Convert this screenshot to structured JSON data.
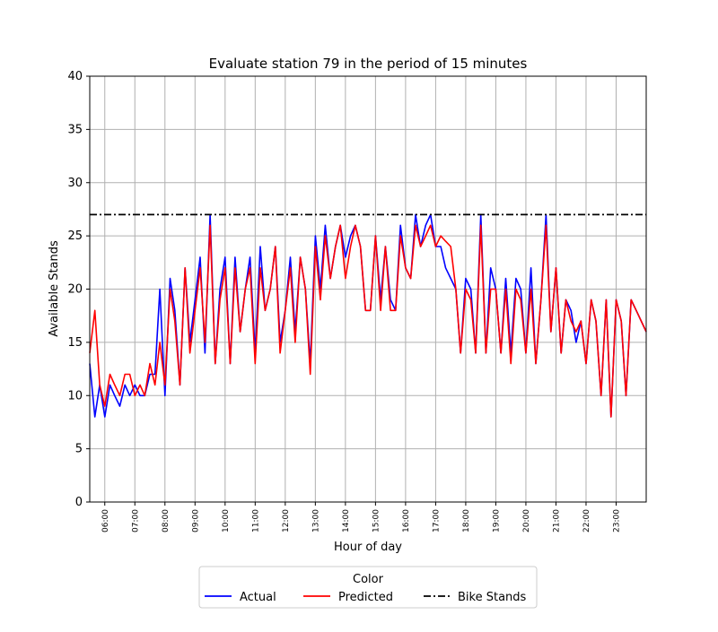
{
  "chart_data": {
    "type": "line",
    "title": "Evaluate station 79 in the period of 15 minutes",
    "xlabel": "Hour of day",
    "ylabel": "Available Stands",
    "ylim": [
      0,
      40
    ],
    "yticks": [
      0,
      5,
      10,
      15,
      20,
      25,
      30,
      35,
      40
    ],
    "xlim": [
      5.5,
      24.0
    ],
    "x_tick_labels": [
      "06:00",
      "07:00",
      "08:00",
      "09:00",
      "10:00",
      "11:00",
      "12:00",
      "13:00",
      "14:00",
      "15:00",
      "16:00",
      "17:00",
      "18:00",
      "19:00",
      "20:00",
      "21:00",
      "22:00",
      "23:00"
    ],
    "grid": true,
    "legend": {
      "title": "Color",
      "placement": "bottom-center",
      "entries": [
        "Actual",
        "Predicted",
        "Bike Stands"
      ]
    },
    "hline": {
      "name": "Bike Stands",
      "y": 27,
      "color": "#000000",
      "style": "dash-dot"
    },
    "series": [
      {
        "name": "Actual",
        "color": "#0000ff",
        "points": [
          [
            5.5,
            13
          ],
          [
            5.67,
            8
          ],
          [
            5.83,
            11
          ],
          [
            6.0,
            8
          ],
          [
            6.17,
            11
          ],
          [
            6.33,
            10
          ],
          [
            6.5,
            9
          ],
          [
            6.67,
            11
          ],
          [
            6.83,
            10
          ],
          [
            7.0,
            11
          ],
          [
            7.17,
            10
          ],
          [
            7.33,
            10
          ],
          [
            7.5,
            12
          ],
          [
            7.67,
            12
          ],
          [
            7.83,
            20
          ],
          [
            8.0,
            10
          ],
          [
            8.17,
            21
          ],
          [
            8.33,
            18
          ],
          [
            8.5,
            11
          ],
          [
            8.67,
            22
          ],
          [
            8.83,
            15
          ],
          [
            9.0,
            19
          ],
          [
            9.17,
            23
          ],
          [
            9.33,
            14
          ],
          [
            9.5,
            27
          ],
          [
            9.67,
            13
          ],
          [
            9.83,
            20
          ],
          [
            10.0,
            23
          ],
          [
            10.17,
            13
          ],
          [
            10.33,
            23
          ],
          [
            10.5,
            16
          ],
          [
            10.67,
            20
          ],
          [
            10.83,
            23
          ],
          [
            11.0,
            14
          ],
          [
            11.17,
            24
          ],
          [
            11.33,
            18
          ],
          [
            11.5,
            20
          ],
          [
            11.67,
            24
          ],
          [
            11.83,
            15
          ],
          [
            12.0,
            18
          ],
          [
            12.17,
            23
          ],
          [
            12.33,
            16
          ],
          [
            12.5,
            23
          ],
          [
            12.67,
            20
          ],
          [
            12.83,
            13
          ],
          [
            13.0,
            25
          ],
          [
            13.17,
            20
          ],
          [
            13.33,
            26
          ],
          [
            13.5,
            21
          ],
          [
            13.67,
            24
          ],
          [
            13.83,
            26
          ],
          [
            14.0,
            23
          ],
          [
            14.17,
            25
          ],
          [
            14.33,
            26
          ],
          [
            14.5,
            24
          ],
          [
            14.67,
            18
          ],
          [
            14.83,
            18
          ],
          [
            15.0,
            25
          ],
          [
            15.17,
            19
          ],
          [
            15.33,
            24
          ],
          [
            15.5,
            19
          ],
          [
            15.67,
            18
          ],
          [
            15.83,
            26
          ],
          [
            16.0,
            22
          ],
          [
            16.17,
            21
          ],
          [
            16.33,
            27
          ],
          [
            16.5,
            24
          ],
          [
            16.67,
            26
          ],
          [
            16.83,
            27
          ],
          [
            17.0,
            24
          ],
          [
            17.17,
            24
          ],
          [
            17.33,
            22
          ],
          [
            17.5,
            21
          ],
          [
            17.67,
            20
          ],
          [
            17.83,
            14
          ],
          [
            18.0,
            21
          ],
          [
            18.17,
            20
          ],
          [
            18.33,
            14
          ],
          [
            18.5,
            27
          ],
          [
            18.67,
            14
          ],
          [
            18.83,
            22
          ],
          [
            19.0,
            20
          ],
          [
            19.17,
            14
          ],
          [
            19.33,
            21
          ],
          [
            19.5,
            14
          ],
          [
            19.67,
            21
          ],
          [
            19.83,
            20
          ],
          [
            20.0,
            14
          ],
          [
            20.17,
            22
          ],
          [
            20.33,
            13
          ],
          [
            20.5,
            19
          ],
          [
            20.67,
            27
          ],
          [
            20.83,
            16
          ],
          [
            21.0,
            22
          ],
          [
            21.17,
            14
          ],
          [
            21.33,
            19
          ],
          [
            21.5,
            18
          ],
          [
            21.67,
            15
          ],
          [
            21.83,
            17
          ],
          [
            22.0,
            13
          ],
          [
            22.17,
            19
          ],
          [
            22.33,
            17
          ],
          [
            22.5,
            10
          ],
          [
            22.67,
            19
          ],
          [
            22.83,
            8
          ],
          [
            23.0,
            19
          ],
          [
            23.17,
            17
          ],
          [
            23.33,
            10
          ],
          [
            23.5,
            19
          ],
          [
            23.67,
            18
          ],
          [
            24.0,
            16
          ]
        ]
      },
      {
        "name": "Predicted",
        "color": "#ff0000",
        "points": [
          [
            5.5,
            14
          ],
          [
            5.67,
            18
          ],
          [
            5.83,
            11
          ],
          [
            6.0,
            9
          ],
          [
            6.17,
            12
          ],
          [
            6.33,
            11
          ],
          [
            6.5,
            10
          ],
          [
            6.67,
            12
          ],
          [
            6.83,
            12
          ],
          [
            7.0,
            10
          ],
          [
            7.17,
            11
          ],
          [
            7.33,
            10
          ],
          [
            7.5,
            13
          ],
          [
            7.67,
            11
          ],
          [
            7.83,
            15
          ],
          [
            8.0,
            11
          ],
          [
            8.17,
            20
          ],
          [
            8.33,
            17
          ],
          [
            8.5,
            11
          ],
          [
            8.67,
            22
          ],
          [
            8.83,
            14
          ],
          [
            9.0,
            18
          ],
          [
            9.17,
            22
          ],
          [
            9.33,
            15
          ],
          [
            9.5,
            26
          ],
          [
            9.67,
            13
          ],
          [
            9.83,
            19
          ],
          [
            10.0,
            22
          ],
          [
            10.17,
            13
          ],
          [
            10.33,
            22
          ],
          [
            10.5,
            16
          ],
          [
            10.67,
            20
          ],
          [
            10.83,
            22
          ],
          [
            11.0,
            13
          ],
          [
            11.17,
            22
          ],
          [
            11.33,
            18
          ],
          [
            11.5,
            20
          ],
          [
            11.67,
            24
          ],
          [
            11.83,
            14
          ],
          [
            12.0,
            18
          ],
          [
            12.17,
            22
          ],
          [
            12.33,
            15
          ],
          [
            12.5,
            23
          ],
          [
            12.67,
            20
          ],
          [
            12.83,
            12
          ],
          [
            13.0,
            24
          ],
          [
            13.17,
            19
          ],
          [
            13.33,
            25
          ],
          [
            13.5,
            21
          ],
          [
            13.67,
            24
          ],
          [
            13.83,
            26
          ],
          [
            14.0,
            21
          ],
          [
            14.17,
            24
          ],
          [
            14.33,
            26
          ],
          [
            14.5,
            24
          ],
          [
            14.67,
            18
          ],
          [
            14.83,
            18
          ],
          [
            15.0,
            25
          ],
          [
            15.17,
            18
          ],
          [
            15.33,
            24
          ],
          [
            15.5,
            18
          ],
          [
            15.67,
            18
          ],
          [
            15.83,
            25
          ],
          [
            16.0,
            22
          ],
          [
            16.17,
            21
          ],
          [
            16.33,
            26
          ],
          [
            16.5,
            24
          ],
          [
            16.67,
            25
          ],
          [
            16.83,
            26
          ],
          [
            17.0,
            24
          ],
          [
            17.17,
            25
          ],
          [
            17.33,
            24.5
          ],
          [
            17.5,
            24
          ],
          [
            17.67,
            20
          ],
          [
            17.83,
            14
          ],
          [
            18.0,
            20
          ],
          [
            18.17,
            19
          ],
          [
            18.33,
            14
          ],
          [
            18.5,
            26
          ],
          [
            18.67,
            14
          ],
          [
            18.83,
            20
          ],
          [
            19.0,
            20
          ],
          [
            19.17,
            14
          ],
          [
            19.33,
            20
          ],
          [
            19.5,
            13
          ],
          [
            19.67,
            20
          ],
          [
            19.83,
            19
          ],
          [
            20.0,
            14
          ],
          [
            20.17,
            20
          ],
          [
            20.33,
            13
          ],
          [
            20.5,
            19
          ],
          [
            20.67,
            26
          ],
          [
            20.83,
            16
          ],
          [
            21.0,
            22
          ],
          [
            21.17,
            14
          ],
          [
            21.33,
            19
          ],
          [
            21.5,
            17
          ],
          [
            21.67,
            16
          ],
          [
            21.83,
            17
          ],
          [
            22.0,
            13
          ],
          [
            22.17,
            19
          ],
          [
            22.33,
            17
          ],
          [
            22.5,
            10
          ],
          [
            22.67,
            19
          ],
          [
            22.83,
            8
          ],
          [
            23.0,
            19
          ],
          [
            23.17,
            17
          ],
          [
            23.33,
            10
          ],
          [
            23.5,
            19
          ],
          [
            23.67,
            18
          ],
          [
            24.0,
            16
          ]
        ]
      }
    ]
  }
}
